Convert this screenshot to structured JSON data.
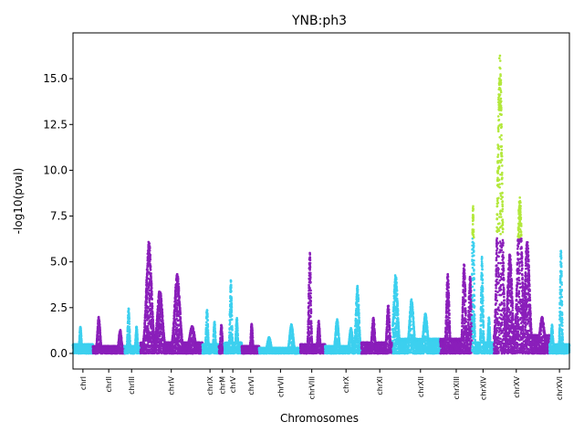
{
  "chart_data": {
    "type": "scatter",
    "title": "YNB:ph3",
    "xlabel": "Chromosomes",
    "ylabel": "-log10(pval)",
    "ylim": [
      -0.85,
      17.5
    ],
    "xlim": [
      0,
      1000
    ],
    "y_ticks": [
      0.0,
      2.5,
      5.0,
      7.5,
      10.0,
      12.5,
      15.0
    ],
    "y_tick_labels": [
      "0.0",
      "2.5",
      "5.0",
      "7.5",
      "10.0",
      "12.5",
      "15.0"
    ],
    "grid": false,
    "legend": "none",
    "colors": {
      "odd_chromosome": "#8a1fba",
      "even_chromosome": "#3dd0ef",
      "significant": "#b3e83c"
    },
    "significance_threshold": 6.3,
    "chromosomes": [
      {
        "label": "chrI",
        "tick": 20,
        "start": 0,
        "end": 40,
        "color": "even_chromosome",
        "peaks": [
          [
            15,
            1.5
          ]
        ],
        "baseline": 0.5
      },
      {
        "label": "chrII",
        "tick": 72,
        "start": 40,
        "end": 104,
        "color": "odd_chromosome",
        "peaks": [
          [
            52,
            2.0
          ],
          [
            95,
            1.3
          ]
        ],
        "baseline": 0.4
      },
      {
        "label": "chrIII",
        "tick": 118,
        "start": 104,
        "end": 136,
        "color": "even_chromosome",
        "peaks": [
          [
            112,
            2.5
          ],
          [
            128,
            1.5
          ]
        ],
        "baseline": 0.4
      },
      {
        "label": "chrIV",
        "tick": 198,
        "start": 136,
        "end": 261,
        "color": "odd_chromosome",
        "peaks": [
          [
            153,
            6.2
          ],
          [
            175,
            3.5
          ],
          [
            210,
            4.4
          ],
          [
            240,
            1.5
          ]
        ],
        "baseline": 0.6
      },
      {
        "label": "chrIX",
        "tick": 276,
        "start": 261,
        "end": 294,
        "color": "even_chromosome",
        "peaks": [
          [
            270,
            2.5
          ],
          [
            285,
            1.8
          ]
        ],
        "baseline": 0.5
      },
      {
        "label": "chrM",
        "tick": 301,
        "start": 294,
        "end": 305,
        "color": "odd_chromosome",
        "peaks": [
          [
            299,
            1.6
          ]
        ],
        "baseline": 0.4
      },
      {
        "label": "chrV",
        "tick": 322,
        "start": 305,
        "end": 340,
        "color": "even_chromosome",
        "peaks": [
          [
            318,
            4.1
          ],
          [
            330,
            2.0
          ]
        ],
        "baseline": 0.6
      },
      {
        "label": "chrVI",
        "tick": 358,
        "start": 340,
        "end": 375,
        "color": "odd_chromosome",
        "peaks": [
          [
            360,
            1.7
          ]
        ],
        "baseline": 0.4
      },
      {
        "label": "chrVII",
        "tick": 418,
        "start": 375,
        "end": 458,
        "color": "even_chromosome",
        "peaks": [
          [
            395,
            0.9
          ],
          [
            440,
            1.6
          ]
        ],
        "baseline": 0.3
      },
      {
        "label": "chrVIII",
        "tick": 481,
        "start": 458,
        "end": 508,
        "color": "odd_chromosome",
        "peaks": [
          [
            477,
            5.6
          ],
          [
            495,
            1.8
          ]
        ],
        "baseline": 0.5
      },
      {
        "label": "chrX",
        "tick": 550,
        "start": 508,
        "end": 581,
        "color": "even_chromosome",
        "peaks": [
          [
            532,
            1.9
          ],
          [
            560,
            1.4
          ],
          [
            573,
            3.7
          ]
        ],
        "baseline": 0.4
      },
      {
        "label": "chrXI",
        "tick": 618,
        "start": 581,
        "end": 644,
        "color": "odd_chromosome",
        "peaks": [
          [
            605,
            2.0
          ],
          [
            635,
            2.7
          ]
        ],
        "baseline": 0.6
      },
      {
        "label": "chrXII",
        "tick": 700,
        "start": 644,
        "end": 740,
        "color": "even_chromosome",
        "peaks": [
          [
            650,
            4.4
          ],
          [
            682,
            3.0
          ],
          [
            710,
            2.2
          ]
        ],
        "baseline": 0.8
      },
      {
        "label": "chrXIII",
        "tick": 772,
        "start": 740,
        "end": 804,
        "color": "odd_chromosome",
        "peaks": [
          [
            755,
            4.4
          ],
          [
            788,
            5.0
          ],
          [
            800,
            4.3
          ]
        ],
        "baseline": 0.8
      },
      {
        "label": "chrXIV",
        "tick": 826,
        "start": 804,
        "end": 848,
        "color": "even_chromosome",
        "peaks": [
          [
            806,
            8.5
          ],
          [
            824,
            5.4
          ],
          [
            838,
            2.0
          ]
        ],
        "baseline": 0.6
      },
      {
        "label": "chrXV",
        "tick": 893,
        "start": 848,
        "end": 960,
        "color": "odd_chromosome",
        "peaks": [
          [
            860,
            16.5
          ],
          [
            880,
            5.5
          ],
          [
            900,
            8.7
          ],
          [
            915,
            6.2
          ],
          [
            945,
            2.0
          ]
        ],
        "baseline": 1.0
      },
      {
        "label": "chrXVI",
        "tick": 980,
        "start": 960,
        "end": 1000,
        "color": "even_chromosome",
        "peaks": [
          [
            965,
            1.6
          ],
          [
            983,
            5.8
          ]
        ],
        "baseline": 0.5
      }
    ]
  }
}
